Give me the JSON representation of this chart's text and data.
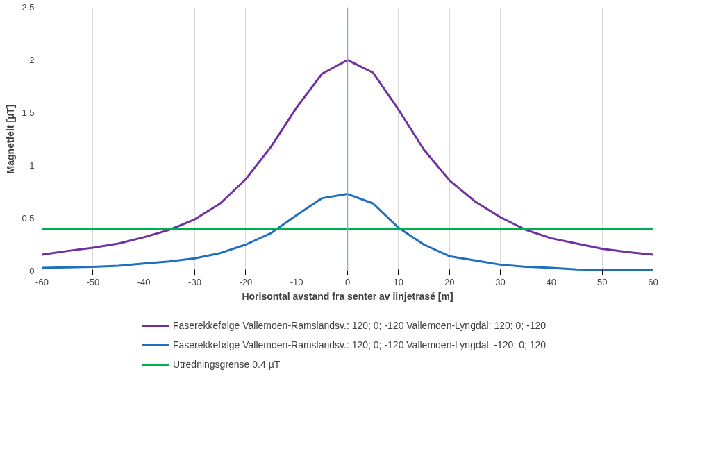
{
  "chart_data": {
    "type": "line",
    "xlabel": "Horisontal avstand fra senter av linjetrasé [m]",
    "ylabel": "Magnetfelt [µT]",
    "x": [
      -60,
      -55,
      -50,
      -45,
      -40,
      -35,
      -30,
      -25,
      -20,
      -15,
      -10,
      -5,
      0,
      5,
      10,
      15,
      20,
      25,
      30,
      35,
      40,
      45,
      50,
      55,
      60
    ],
    "series": [
      {
        "name": "Faserekkefølge Vallemoen-Ramslandsv.: 120; 0; -120 Vallemoen-Lyngdal: 120; 0; -120",
        "color": "#7030a0",
        "values": [
          0.155,
          0.19,
          0.22,
          0.26,
          0.32,
          0.39,
          0.49,
          0.64,
          0.87,
          1.18,
          1.55,
          1.87,
          2.0,
          1.88,
          1.53,
          1.15,
          0.86,
          0.66,
          0.51,
          0.39,
          0.31,
          0.26,
          0.21,
          0.18,
          0.155
        ]
      },
      {
        "name": "Faserekkefølge Vallemoen-Ramslandsv.: 120; 0; -120 Vallemoen-Lyngdal: -120; 0; 120",
        "color": "#1f6fc0",
        "values": [
          0.03,
          0.035,
          0.04,
          0.05,
          0.07,
          0.09,
          0.12,
          0.17,
          0.25,
          0.36,
          0.53,
          0.69,
          0.73,
          0.64,
          0.41,
          0.25,
          0.14,
          0.1,
          0.06,
          0.04,
          0.03,
          0.015,
          0.01,
          0.01,
          0.01
        ]
      },
      {
        "name": "Utredningsgrense 0.4 µT",
        "color": "#00b050",
        "x": [
          -60,
          60
        ],
        "values": [
          0.4,
          0.4
        ]
      }
    ],
    "ref_lines": [
      {
        "axis": "x",
        "value": 0,
        "color": "#8fa9c4"
      }
    ],
    "xlim": [
      -60,
      60
    ],
    "xticks": [
      -60,
      -50,
      -40,
      -30,
      -20,
      -10,
      0,
      10,
      20,
      30,
      40,
      50,
      60
    ],
    "ylim": [
      0,
      2.5
    ],
    "yticks": [
      0,
      0.5,
      1,
      1.5,
      2,
      2.5
    ],
    "grid": "x",
    "legend": "bottom",
    "line_style": "solid",
    "marker": "none"
  }
}
